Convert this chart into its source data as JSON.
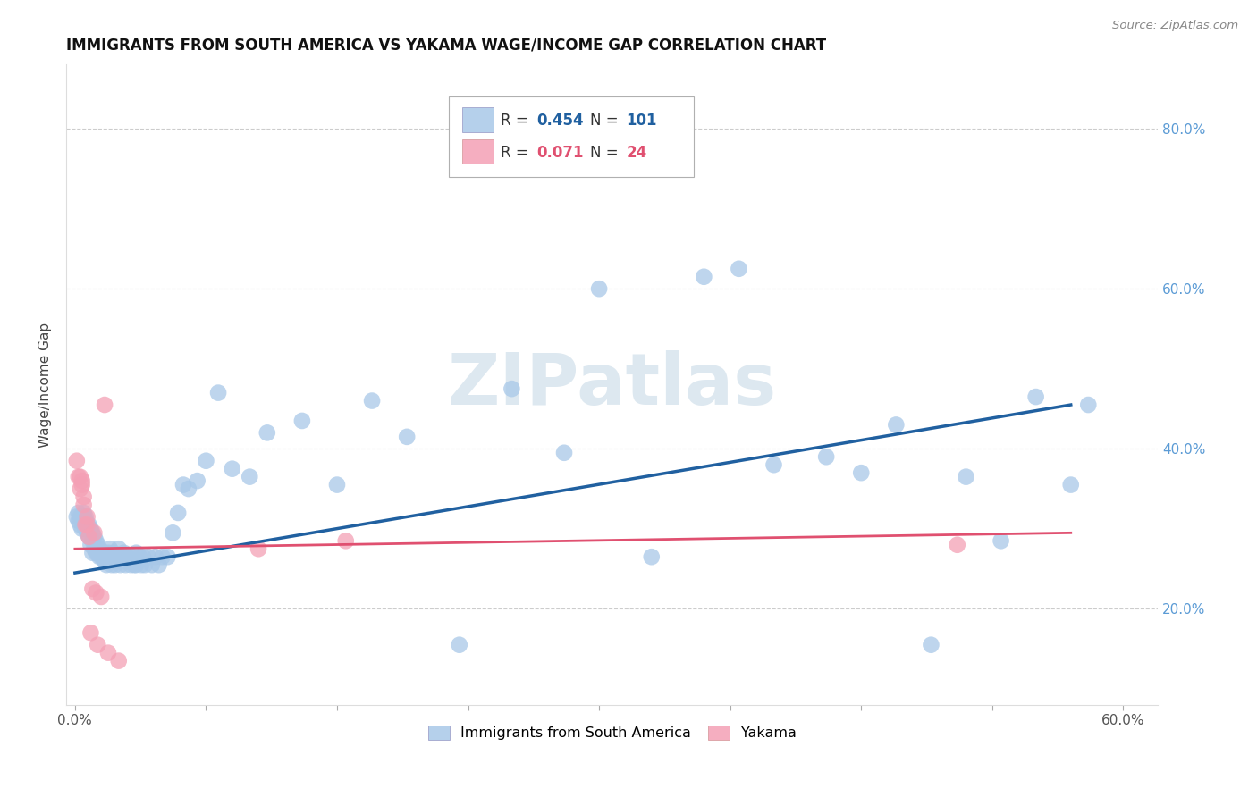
{
  "title": "IMMIGRANTS FROM SOUTH AMERICA VS YAKAMA WAGE/INCOME GAP CORRELATION CHART",
  "source": "Source: ZipAtlas.com",
  "xlabel_ticks": [
    "0.0%",
    "",
    "",
    "",
    "",
    "",
    "",
    "",
    "60.0%"
  ],
  "xlabel_vals": [
    0.0,
    0.075,
    0.15,
    0.225,
    0.3,
    0.375,
    0.45,
    0.525,
    0.6
  ],
  "ylabel_ticks": [
    "20.0%",
    "40.0%",
    "60.0%",
    "80.0%"
  ],
  "ylabel_vals": [
    0.2,
    0.4,
    0.6,
    0.8
  ],
  "xlim": [
    -0.005,
    0.62
  ],
  "ylim": [
    0.08,
    0.88
  ],
  "ylabel": "Wage/Income Gap",
  "legend_label1": "Immigrants from South America",
  "legend_label2": "Yakama",
  "legend_R1": "0.454",
  "legend_N1": "101",
  "legend_R2": "0.071",
  "legend_N2": "24",
  "color_blue": "#a8c8e8",
  "color_pink": "#f4a0b5",
  "line_color_blue": "#2060a0",
  "line_color_pink": "#e05070",
  "watermark": "ZIPatlas",
  "blue_x": [
    0.001,
    0.002,
    0.002,
    0.003,
    0.003,
    0.004,
    0.004,
    0.005,
    0.005,
    0.005,
    0.006,
    0.006,
    0.006,
    0.007,
    0.007,
    0.008,
    0.008,
    0.009,
    0.009,
    0.01,
    0.01,
    0.01,
    0.011,
    0.011,
    0.012,
    0.012,
    0.013,
    0.013,
    0.014,
    0.014,
    0.015,
    0.015,
    0.016,
    0.017,
    0.017,
    0.018,
    0.019,
    0.019,
    0.02,
    0.02,
    0.021,
    0.022,
    0.022,
    0.023,
    0.024,
    0.025,
    0.025,
    0.026,
    0.027,
    0.028,
    0.028,
    0.029,
    0.03,
    0.031,
    0.032,
    0.033,
    0.034,
    0.035,
    0.035,
    0.036,
    0.037,
    0.038,
    0.039,
    0.04,
    0.042,
    0.044,
    0.046,
    0.048,
    0.05,
    0.053,
    0.056,
    0.059,
    0.062,
    0.065,
    0.07,
    0.075,
    0.082,
    0.09,
    0.1,
    0.11,
    0.13,
    0.15,
    0.17,
    0.19,
    0.22,
    0.25,
    0.28,
    0.3,
    0.33,
    0.36,
    0.38,
    0.4,
    0.43,
    0.45,
    0.47,
    0.49,
    0.51,
    0.53,
    0.55,
    0.57,
    0.58
  ],
  "blue_y": [
    0.315,
    0.32,
    0.31,
    0.305,
    0.315,
    0.3,
    0.315,
    0.315,
    0.32,
    0.31,
    0.31,
    0.3,
    0.315,
    0.295,
    0.305,
    0.29,
    0.305,
    0.28,
    0.3,
    0.27,
    0.285,
    0.295,
    0.275,
    0.29,
    0.27,
    0.285,
    0.27,
    0.28,
    0.265,
    0.275,
    0.265,
    0.27,
    0.265,
    0.26,
    0.27,
    0.255,
    0.265,
    0.27,
    0.26,
    0.275,
    0.255,
    0.265,
    0.27,
    0.255,
    0.26,
    0.265,
    0.275,
    0.255,
    0.265,
    0.27,
    0.26,
    0.255,
    0.265,
    0.26,
    0.255,
    0.265,
    0.255,
    0.255,
    0.27,
    0.26,
    0.265,
    0.255,
    0.265,
    0.255,
    0.265,
    0.255,
    0.265,
    0.255,
    0.265,
    0.265,
    0.295,
    0.32,
    0.355,
    0.35,
    0.36,
    0.385,
    0.47,
    0.375,
    0.365,
    0.42,
    0.435,
    0.355,
    0.46,
    0.415,
    0.155,
    0.475,
    0.395,
    0.6,
    0.265,
    0.615,
    0.625,
    0.38,
    0.39,
    0.37,
    0.43,
    0.155,
    0.365,
    0.285,
    0.465,
    0.355,
    0.455
  ],
  "pink_x": [
    0.001,
    0.002,
    0.003,
    0.003,
    0.004,
    0.004,
    0.005,
    0.005,
    0.006,
    0.007,
    0.007,
    0.008,
    0.009,
    0.01,
    0.011,
    0.012,
    0.013,
    0.015,
    0.017,
    0.019,
    0.025,
    0.105,
    0.155,
    0.505
  ],
  "pink_y": [
    0.385,
    0.365,
    0.35,
    0.365,
    0.36,
    0.355,
    0.33,
    0.34,
    0.305,
    0.305,
    0.315,
    0.29,
    0.17,
    0.225,
    0.295,
    0.22,
    0.155,
    0.215,
    0.455,
    0.145,
    0.135,
    0.275,
    0.285,
    0.28
  ],
  "blue_line_x": [
    0.0,
    0.57
  ],
  "blue_line_y": [
    0.245,
    0.455
  ],
  "pink_line_x": [
    0.0,
    0.57
  ],
  "pink_line_y": [
    0.275,
    0.295
  ]
}
